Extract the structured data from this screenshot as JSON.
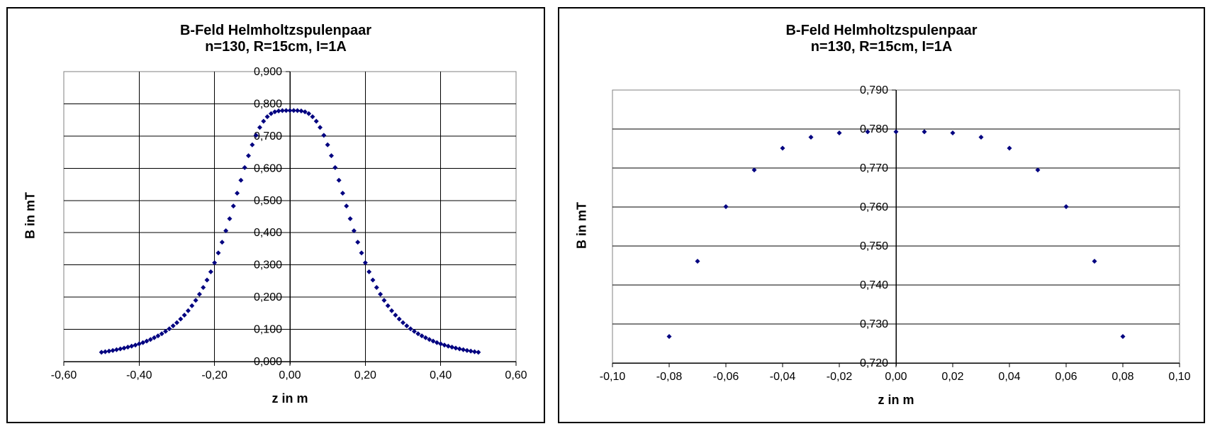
{
  "chart_data": [
    {
      "type": "scatter",
      "title": "B-Feld Helmholtzspulenpaar",
      "subtitle": "n=130, R=15cm, I=1A",
      "xlabel": "z in m",
      "ylabel": "B in mT",
      "xlim": [
        -0.6,
        0.6
      ],
      "ylim": [
        0.0,
        0.9
      ],
      "x_ticks": [
        -0.6,
        -0.4,
        -0.2,
        0.0,
        0.2,
        0.4,
        0.6
      ],
      "x_tick_labels": [
        "-0,60",
        "-0,40",
        "-0,20",
        "0,00",
        "0,20",
        "0,40",
        "0,60"
      ],
      "y_ticks": [
        0.0,
        0.1,
        0.2,
        0.3,
        0.4,
        0.5,
        0.6,
        0.7,
        0.8,
        0.9
      ],
      "y_tick_labels": [
        "0,000",
        "0,100",
        "0,200",
        "0,300",
        "0,400",
        "0,500",
        "0,600",
        "0,700",
        "0,800",
        "0,900"
      ],
      "grid": {
        "horizontal": true,
        "vertical": true
      },
      "legend": false,
      "marker": {
        "shape": "diamond",
        "color": "#000080",
        "size": 7
      },
      "colors": {
        "gridline": "#000000",
        "axis": "#000000",
        "plot_border": "#808080",
        "panel_border": "#000000",
        "text": "#000000",
        "background": "#ffffff"
      },
      "series": [
        {
          "x": [
            -0.5,
            -0.49,
            -0.48,
            -0.47,
            -0.46,
            -0.45,
            -0.44,
            -0.43,
            -0.42,
            -0.41,
            -0.4,
            -0.39,
            -0.38,
            -0.37,
            -0.36,
            -0.35,
            -0.34,
            -0.33,
            -0.32,
            -0.31,
            -0.3,
            -0.29,
            -0.28,
            -0.27,
            -0.26,
            -0.25,
            -0.24,
            -0.23,
            -0.22,
            -0.21,
            -0.2,
            -0.19,
            -0.18,
            -0.17,
            -0.16,
            -0.15,
            -0.14,
            -0.13,
            -0.12,
            -0.11,
            -0.1,
            -0.09,
            -0.08,
            -0.07,
            -0.06,
            -0.05,
            -0.04,
            -0.03,
            -0.02,
            -0.01,
            0.0,
            0.01,
            0.02,
            0.03,
            0.04,
            0.05,
            0.06,
            0.07,
            0.08,
            0.09,
            0.1,
            0.11,
            0.12,
            0.13,
            0.14,
            0.15,
            0.16,
            0.17,
            0.18,
            0.19,
            0.2,
            0.21,
            0.22,
            0.23,
            0.24,
            0.25,
            0.26,
            0.27,
            0.28,
            0.29,
            0.3,
            0.31,
            0.32,
            0.33,
            0.34,
            0.35,
            0.36,
            0.37,
            0.38,
            0.39,
            0.4,
            0.41,
            0.42,
            0.43,
            0.44,
            0.45,
            0.46,
            0.47,
            0.48,
            0.49,
            0.5
          ],
          "y": [
            0.0288,
            0.0306,
            0.0325,
            0.0345,
            0.0368,
            0.0392,
            0.0418,
            0.0447,
            0.0478,
            0.0512,
            0.0549,
            0.059,
            0.0635,
            0.0685,
            0.0739,
            0.0799,
            0.0865,
            0.0938,
            0.1019,
            0.1109,
            0.1208,
            0.1319,
            0.1442,
            0.158,
            0.1732,
            0.1902,
            0.209,
            0.23,
            0.2531,
            0.2786,
            0.3067,
            0.3373,
            0.3704,
            0.4059,
            0.4434,
            0.4826,
            0.5227,
            0.5628,
            0.602,
            0.639,
            0.6727,
            0.7023,
            0.7268,
            0.7461,
            0.7601,
            0.7695,
            0.7751,
            0.7779,
            0.779,
            0.7793,
            0.7793,
            0.7793,
            0.779,
            0.7779,
            0.7751,
            0.7695,
            0.7601,
            0.7461,
            0.7268,
            0.7023,
            0.6727,
            0.639,
            0.602,
            0.5628,
            0.5227,
            0.4826,
            0.4434,
            0.4059,
            0.3704,
            0.3373,
            0.3067,
            0.2786,
            0.2531,
            0.23,
            0.209,
            0.1902,
            0.1732,
            0.158,
            0.1442,
            0.1319,
            0.1208,
            0.1109,
            0.1019,
            0.0938,
            0.0865,
            0.0799,
            0.0739,
            0.0685,
            0.0635,
            0.059,
            0.0549,
            0.0512,
            0.0478,
            0.0447,
            0.0418,
            0.0392,
            0.0368,
            0.0345,
            0.0325,
            0.0306,
            0.0288
          ]
        }
      ]
    },
    {
      "type": "scatter",
      "title": "B-Feld Helmholtzspulenpaar",
      "subtitle": "n=130, R=15cm, I=1A",
      "xlabel": "z in m",
      "ylabel": "B in mT",
      "xlim": [
        -0.1,
        0.1
      ],
      "ylim": [
        0.72,
        0.79
      ],
      "x_ticks": [
        -0.1,
        -0.08,
        -0.06,
        -0.04,
        -0.02,
        0.0,
        0.02,
        0.04,
        0.06,
        0.08,
        0.1
      ],
      "x_tick_labels": [
        "-0,10",
        "-0,08",
        "-0,06",
        "-0,04",
        "-0,02",
        "0,00",
        "0,02",
        "0,04",
        "0,06",
        "0,08",
        "0,10"
      ],
      "y_ticks": [
        0.72,
        0.73,
        0.74,
        0.75,
        0.76,
        0.77,
        0.78,
        0.79
      ],
      "y_tick_labels": [
        "0,720",
        "0,730",
        "0,740",
        "0,750",
        "0,760",
        "0,770",
        "0,780",
        "0,790"
      ],
      "grid": {
        "horizontal": true,
        "vertical": false
      },
      "legend": false,
      "marker": {
        "shape": "diamond",
        "color": "#000080",
        "size": 7
      },
      "colors": {
        "gridline": "#000000",
        "axis": "#000000",
        "plot_border": "#808080",
        "panel_border": "#000000",
        "text": "#000000",
        "background": "#ffffff"
      },
      "series": [
        {
          "x": [
            -0.08,
            -0.07,
            -0.06,
            -0.05,
            -0.04,
            -0.03,
            -0.02,
            -0.01,
            0.0,
            0.01,
            0.02,
            0.03,
            0.04,
            0.05,
            0.06,
            0.07,
            0.08
          ],
          "y": [
            0.7268,
            0.7461,
            0.7601,
            0.7695,
            0.7751,
            0.7779,
            0.779,
            0.7793,
            0.7793,
            0.7793,
            0.779,
            0.7779,
            0.7751,
            0.7695,
            0.7601,
            0.7461,
            0.7268
          ]
        }
      ]
    }
  ]
}
